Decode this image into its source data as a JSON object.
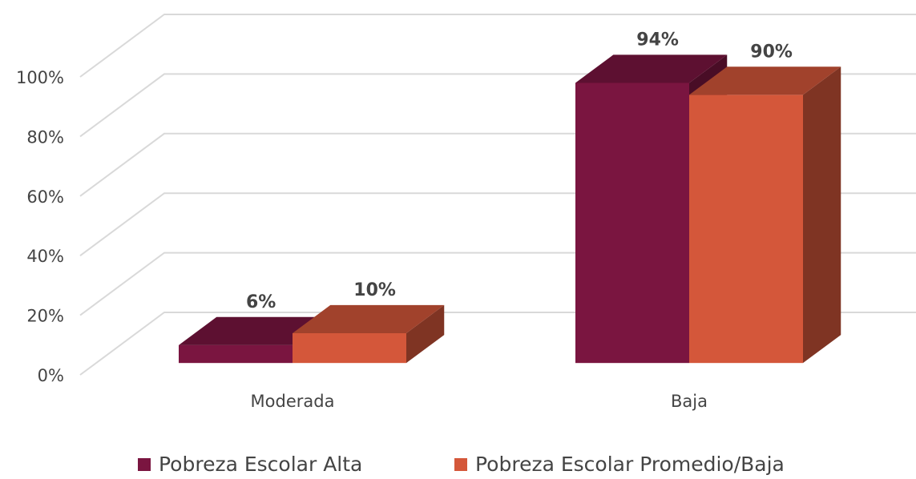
{
  "chart_data": {
    "type": "bar3d",
    "categories": [
      "Moderada",
      "Baja"
    ],
    "series": [
      {
        "name": "Pobreza Escolar Alta",
        "color": "#7a1540",
        "values": [
          6,
          94
        ],
        "value_labels": [
          "6%",
          "94%"
        ]
      },
      {
        "name": "Pobreza Escolar Promedio/Baja",
        "color": "#d4573a",
        "values": [
          10,
          90
        ],
        "value_labels": [
          "10%",
          "90%"
        ]
      }
    ],
    "ylim": [
      0,
      100
    ],
    "yticks": [
      {
        "value": 0,
        "label": "0%"
      },
      {
        "value": 20,
        "label": "20%"
      },
      {
        "value": 40,
        "label": "40%"
      },
      {
        "value": 60,
        "label": "60%"
      },
      {
        "value": 80,
        "label": "80%"
      },
      {
        "value": 100,
        "label": "100%"
      }
    ],
    "grid": true,
    "legend": "bottom"
  }
}
